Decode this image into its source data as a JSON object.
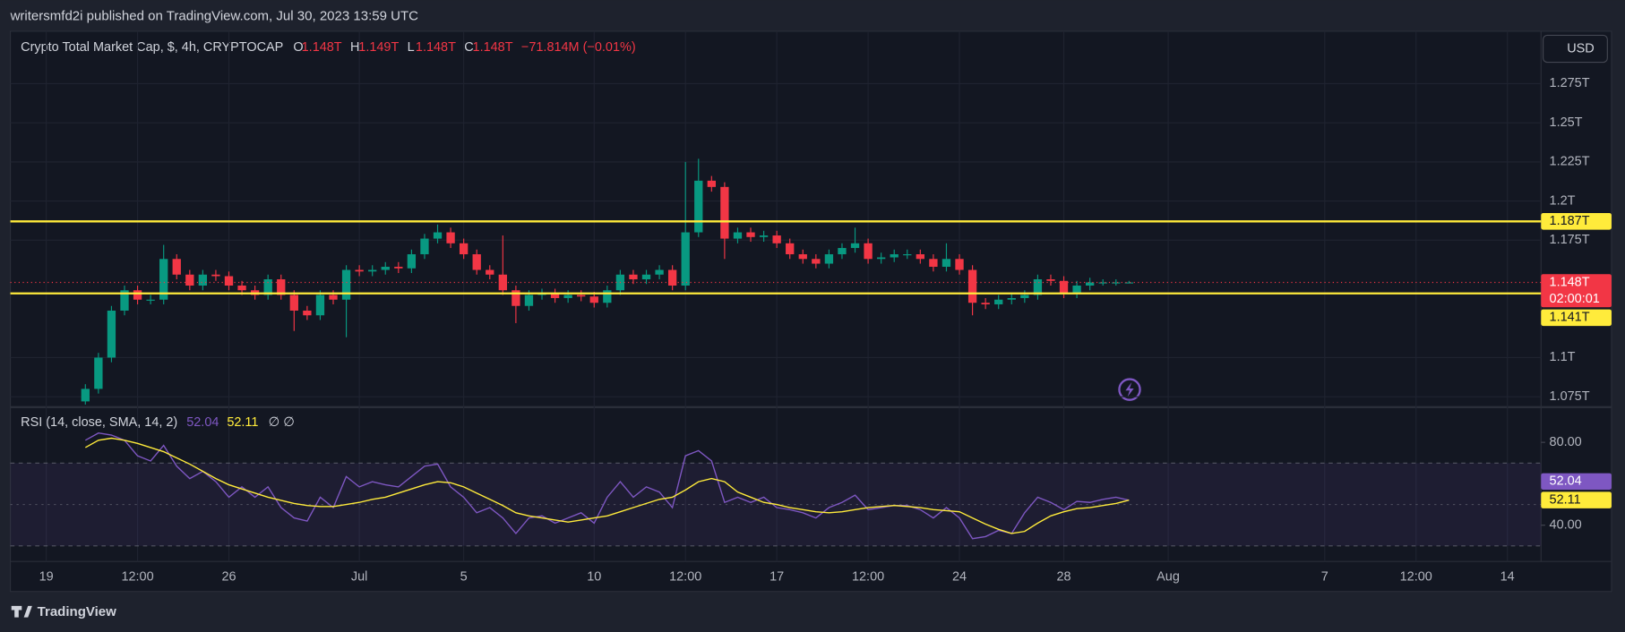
{
  "publish_note": "writersmfd2i published on TradingView.com, Jul 30, 2023 13:59 UTC",
  "brand": "TradingView",
  "currency_button": "USD",
  "chart_data": [
    {
      "type": "candlestick",
      "title": "Crypto Total Market Cap, $, 4h, CRYPTOCAP",
      "legend_values": [
        {
          "key": "O",
          "value": 1.148,
          "label": "1.148T"
        },
        {
          "key": "H",
          "value": 1.149,
          "label": "1.149T"
        },
        {
          "key": "L",
          "value": 1.148,
          "label": "1.148T"
        },
        {
          "key": "C",
          "value": 1.148,
          "label": "1.148T"
        }
      ],
      "change": {
        "value": -7.1814e-05,
        "label": "−71.814M (−0.01%)"
      },
      "up_color": "#089981",
      "down_color": "#f23645",
      "xlim": [
        "2023-06-17T15:00",
        "2023-08-15T07:00"
      ],
      "ylim": [
        1.069,
        1.3085
      ],
      "yticks": [
        {
          "value": 1.075,
          "label": "1.075T"
        },
        {
          "value": 1.1,
          "label": "1.1T"
        },
        {
          "value": 1.175,
          "label": "1.175T"
        },
        {
          "value": 1.2,
          "label": "1.2T"
        },
        {
          "value": 1.225,
          "label": "1.225T"
        },
        {
          "value": 1.25,
          "label": "1.25T"
        },
        {
          "value": 1.275,
          "label": "1.275T"
        }
      ],
      "grid": true,
      "hlines": [
        {
          "value": 1.187,
          "label": "1.187T",
          "color": "#ffeb3b"
        },
        {
          "value": 1.141,
          "label": "1.141T",
          "color": "#ffeb3b"
        }
      ],
      "last": {
        "value": 1.148,
        "label": "1.148T",
        "countdown": "02:00:01",
        "color": "#f23645"
      },
      "x": [
        "2023-06-20T12:00",
        "2023-06-21T00:00",
        "2023-06-21T12:00",
        "2023-06-22T00:00",
        "2023-06-22T12:00",
        "2023-06-23T00:00",
        "2023-06-23T12:00",
        "2023-06-24T00:00",
        "2023-06-24T12:00",
        "2023-06-25T00:00",
        "2023-06-25T12:00",
        "2023-06-26T00:00",
        "2023-06-26T12:00",
        "2023-06-27T00:00",
        "2023-06-27T12:00",
        "2023-06-28T00:00",
        "2023-06-28T12:00",
        "2023-06-29T00:00",
        "2023-06-29T12:00",
        "2023-06-30T00:00",
        "2023-06-30T12:00",
        "2023-07-01T00:00",
        "2023-07-01T12:00",
        "2023-07-02T00:00",
        "2023-07-02T12:00",
        "2023-07-03T00:00",
        "2023-07-03T12:00",
        "2023-07-04T00:00",
        "2023-07-04T12:00",
        "2023-07-05T00:00",
        "2023-07-05T12:00",
        "2023-07-06T00:00",
        "2023-07-06T12:00",
        "2023-07-07T00:00",
        "2023-07-07T12:00",
        "2023-07-08T00:00",
        "2023-07-08T12:00",
        "2023-07-09T00:00",
        "2023-07-09T12:00",
        "2023-07-10T00:00",
        "2023-07-10T12:00",
        "2023-07-11T00:00",
        "2023-07-11T12:00",
        "2023-07-12T00:00",
        "2023-07-12T12:00",
        "2023-07-13T00:00",
        "2023-07-13T12:00",
        "2023-07-14T00:00",
        "2023-07-14T12:00",
        "2023-07-15T00:00",
        "2023-07-15T12:00",
        "2023-07-16T00:00",
        "2023-07-16T12:00",
        "2023-07-17T00:00",
        "2023-07-17T12:00",
        "2023-07-18T00:00",
        "2023-07-18T12:00",
        "2023-07-19T00:00",
        "2023-07-19T12:00",
        "2023-07-20T00:00",
        "2023-07-20T12:00",
        "2023-07-21T00:00",
        "2023-07-21T12:00",
        "2023-07-22T00:00",
        "2023-07-22T12:00",
        "2023-07-23T00:00",
        "2023-07-23T12:00",
        "2023-07-24T00:00",
        "2023-07-24T12:00",
        "2023-07-25T00:00",
        "2023-07-25T12:00",
        "2023-07-26T00:00",
        "2023-07-26T12:00",
        "2023-07-27T00:00",
        "2023-07-27T12:00",
        "2023-07-28T00:00",
        "2023-07-28T12:00",
        "2023-07-29T00:00",
        "2023-07-29T12:00",
        "2023-07-30T00:00",
        "2023-07-30T12:00"
      ],
      "open": [
        1.072,
        1.08,
        1.1,
        1.13,
        1.143,
        1.137,
        1.137,
        1.163,
        1.153,
        1.146,
        1.153,
        1.152,
        1.146,
        1.143,
        1.14,
        1.15,
        1.14,
        1.13,
        1.127,
        1.14,
        1.137,
        1.156,
        1.155,
        1.156,
        1.158,
        1.157,
        1.166,
        1.176,
        1.18,
        1.173,
        1.166,
        1.156,
        1.153,
        1.143,
        1.133,
        1.14,
        1.141,
        1.138,
        1.14,
        1.139,
        1.135,
        1.143,
        1.153,
        1.15,
        1.153,
        1.156,
        1.146,
        1.18,
        1.213,
        1.209,
        1.176,
        1.18,
        1.177,
        1.178,
        1.173,
        1.166,
        1.163,
        1.16,
        1.166,
        1.17,
        1.173,
        1.163,
        1.164,
        1.166,
        1.166,
        1.163,
        1.158,
        1.163,
        1.156,
        1.135,
        1.134,
        1.137,
        1.138,
        1.14,
        1.15,
        1.149,
        1.141,
        1.146,
        1.148,
        1.148,
        1.148
      ],
      "high": [
        1.083,
        1.103,
        1.133,
        1.146,
        1.146,
        1.14,
        1.172,
        1.166,
        1.156,
        1.156,
        1.156,
        1.155,
        1.149,
        1.146,
        1.153,
        1.153,
        1.143,
        1.133,
        1.143,
        1.143,
        1.159,
        1.159,
        1.159,
        1.161,
        1.161,
        1.169,
        1.179,
        1.185,
        1.183,
        1.176,
        1.169,
        1.159,
        1.178,
        1.146,
        1.143,
        1.144,
        1.144,
        1.143,
        1.143,
        1.142,
        1.146,
        1.156,
        1.156,
        1.156,
        1.159,
        1.159,
        1.225,
        1.227,
        1.216,
        1.212,
        1.183,
        1.183,
        1.181,
        1.181,
        1.176,
        1.169,
        1.166,
        1.169,
        1.173,
        1.183,
        1.176,
        1.167,
        1.169,
        1.169,
        1.169,
        1.166,
        1.173,
        1.166,
        1.159,
        1.138,
        1.14,
        1.141,
        1.143,
        1.153,
        1.153,
        1.152,
        1.149,
        1.151,
        1.15,
        1.15,
        1.149
      ],
      "low": [
        1.07,
        1.077,
        1.097,
        1.127,
        1.134,
        1.134,
        1.134,
        1.15,
        1.143,
        1.143,
        1.149,
        1.143,
        1.14,
        1.137,
        1.137,
        1.137,
        1.117,
        1.124,
        1.124,
        1.134,
        1.113,
        1.152,
        1.152,
        1.153,
        1.154,
        1.154,
        1.163,
        1.173,
        1.17,
        1.163,
        1.153,
        1.15,
        1.14,
        1.122,
        1.13,
        1.137,
        1.135,
        1.135,
        1.136,
        1.132,
        1.132,
        1.14,
        1.147,
        1.147,
        1.15,
        1.143,
        1.143,
        1.177,
        1.206,
        1.163,
        1.173,
        1.174,
        1.174,
        1.17,
        1.163,
        1.16,
        1.157,
        1.157,
        1.163,
        1.167,
        1.16,
        1.16,
        1.161,
        1.163,
        1.16,
        1.155,
        1.155,
        1.153,
        1.127,
        1.131,
        1.131,
        1.134,
        1.135,
        1.137,
        1.146,
        1.138,
        1.138,
        1.143,
        1.146,
        1.146,
        1.148
      ],
      "close": [
        1.08,
        1.1,
        1.13,
        1.143,
        1.137,
        1.137,
        1.163,
        1.153,
        1.146,
        1.153,
        1.152,
        1.146,
        1.143,
        1.14,
        1.15,
        1.14,
        1.13,
        1.127,
        1.14,
        1.137,
        1.156,
        1.155,
        1.156,
        1.158,
        1.157,
        1.166,
        1.176,
        1.18,
        1.173,
        1.166,
        1.156,
        1.153,
        1.143,
        1.133,
        1.14,
        1.141,
        1.138,
        1.14,
        1.139,
        1.135,
        1.143,
        1.153,
        1.15,
        1.153,
        1.156,
        1.146,
        1.18,
        1.213,
        1.209,
        1.176,
        1.18,
        1.177,
        1.178,
        1.173,
        1.166,
        1.163,
        1.16,
        1.166,
        1.17,
        1.173,
        1.163,
        1.164,
        1.166,
        1.166,
        1.163,
        1.158,
        1.163,
        1.156,
        1.135,
        1.134,
        1.137,
        1.138,
        1.14,
        1.15,
        1.149,
        1.141,
        1.146,
        1.148,
        1.148,
        1.148,
        1.148
      ]
    },
    {
      "type": "line",
      "title": "RSI (14, close, SMA, 14, 2)",
      "extra_legend": "∅  ∅",
      "xlim": [
        "2023-06-17T15:00",
        "2023-08-15T07:00"
      ],
      "xticks": [
        {
          "value": "2023-06-19T00:00",
          "label": "19"
        },
        {
          "value": "2023-06-22T12:00",
          "label": "12:00"
        },
        {
          "value": "2023-06-26T00:00",
          "label": "26"
        },
        {
          "value": "2023-07-01T00:00",
          "label": "Jul"
        },
        {
          "value": "2023-07-05T00:00",
          "label": "5"
        },
        {
          "value": "2023-07-10T00:00",
          "label": "10"
        },
        {
          "value": "2023-07-13T12:00",
          "label": "12:00"
        },
        {
          "value": "2023-07-17T00:00",
          "label": "17"
        },
        {
          "value": "2023-07-20T12:00",
          "label": "12:00"
        },
        {
          "value": "2023-07-24T00:00",
          "label": "24"
        },
        {
          "value": "2023-07-28T00:00",
          "label": "28"
        },
        {
          "value": "2023-08-01T00:00",
          "label": "Aug"
        },
        {
          "value": "2023-08-07T00:00",
          "label": "7"
        },
        {
          "value": "2023-08-10T12:00",
          "label": "12:00"
        },
        {
          "value": "2023-08-14T00:00",
          "label": "14"
        }
      ],
      "ylim": [
        23.5,
        96
      ],
      "yticks": [
        {
          "value": 80,
          "label": "80.00"
        },
        {
          "value": 40,
          "label": "40.00"
        }
      ],
      "band": [
        30,
        70
      ],
      "midline": 50,
      "band_color": "#7e57c2",
      "x": [
        "2023-06-20T12:00",
        "2023-06-21T00:00",
        "2023-06-21T12:00",
        "2023-06-22T00:00",
        "2023-06-22T12:00",
        "2023-06-23T00:00",
        "2023-06-23T12:00",
        "2023-06-24T00:00",
        "2023-06-24T12:00",
        "2023-06-25T00:00",
        "2023-06-25T12:00",
        "2023-06-26T00:00",
        "2023-06-26T12:00",
        "2023-06-27T00:00",
        "2023-06-27T12:00",
        "2023-06-28T00:00",
        "2023-06-28T12:00",
        "2023-06-29T00:00",
        "2023-06-29T12:00",
        "2023-06-30T00:00",
        "2023-06-30T12:00",
        "2023-07-01T00:00",
        "2023-07-01T12:00",
        "2023-07-02T00:00",
        "2023-07-02T12:00",
        "2023-07-03T00:00",
        "2023-07-03T12:00",
        "2023-07-04T00:00",
        "2023-07-04T12:00",
        "2023-07-05T00:00",
        "2023-07-05T12:00",
        "2023-07-06T00:00",
        "2023-07-06T12:00",
        "2023-07-07T00:00",
        "2023-07-07T12:00",
        "2023-07-08T00:00",
        "2023-07-08T12:00",
        "2023-07-09T00:00",
        "2023-07-09T12:00",
        "2023-07-10T00:00",
        "2023-07-10T12:00",
        "2023-07-11T00:00",
        "2023-07-11T12:00",
        "2023-07-12T00:00",
        "2023-07-12T12:00",
        "2023-07-13T00:00",
        "2023-07-13T12:00",
        "2023-07-14T00:00",
        "2023-07-14T12:00",
        "2023-07-15T00:00",
        "2023-07-15T12:00",
        "2023-07-16T00:00",
        "2023-07-16T12:00",
        "2023-07-17T00:00",
        "2023-07-17T12:00",
        "2023-07-18T00:00",
        "2023-07-18T12:00",
        "2023-07-19T00:00",
        "2023-07-19T12:00",
        "2023-07-20T00:00",
        "2023-07-20T12:00",
        "2023-07-21T00:00",
        "2023-07-21T12:00",
        "2023-07-22T00:00",
        "2023-07-22T12:00",
        "2023-07-23T00:00",
        "2023-07-23T12:00",
        "2023-07-24T00:00",
        "2023-07-24T12:00",
        "2023-07-25T00:00",
        "2023-07-25T12:00",
        "2023-07-26T00:00",
        "2023-07-26T12:00",
        "2023-07-27T00:00",
        "2023-07-27T12:00",
        "2023-07-28T00:00",
        "2023-07-28T12:00",
        "2023-07-29T00:00",
        "2023-07-29T12:00",
        "2023-07-30T00:00",
        "2023-07-30T12:00"
      ],
      "series": [
        {
          "color": "#7e57c2",
          "label_text_color": "#ffffff",
          "values": [
            81,
            84.5,
            83.5,
            81,
            73.5,
            71,
            78.5,
            68.5,
            62.5,
            66,
            61,
            53.5,
            58.5,
            53.5,
            58.5,
            48.5,
            43.5,
            42,
            53.5,
            48.5,
            63.5,
            58.5,
            61,
            59.5,
            58.5,
            63.5,
            68.5,
            69.5,
            58.5,
            53.5,
            46,
            48.5,
            43.5,
            36,
            43.5,
            44.5,
            41,
            43.5,
            46,
            41,
            53.5,
            61,
            53.5,
            58.5,
            56,
            48.5,
            73.5,
            76,
            71,
            51,
            53.5,
            51,
            53.5,
            48.5,
            47.5,
            46,
            43.5,
            48.5,
            51,
            54.5,
            47.5,
            48.5,
            49.5,
            49.5,
            47.5,
            43.5,
            48.5,
            43.5,
            33.5,
            34.5,
            37.5,
            36,
            46,
            53.5,
            51,
            47.5,
            51.5,
            51,
            52.5,
            53.5,
            52.04
          ]
        },
        {
          "color": "#ffeb3b",
          "label_text_color": "#131722",
          "values": [
            77.5,
            81,
            82,
            81,
            79.5,
            77.5,
            75.5,
            72.5,
            69.5,
            66,
            62.5,
            59.5,
            57.5,
            55.5,
            53.5,
            52,
            50.5,
            49.5,
            49,
            49,
            50,
            51,
            52.5,
            53.5,
            55.5,
            57.5,
            59.5,
            61,
            60.5,
            58.5,
            55.5,
            52.5,
            49.5,
            46,
            44.5,
            43.5,
            42.5,
            41.5,
            42.5,
            43.5,
            44.5,
            46.5,
            48.5,
            50.5,
            52.5,
            53.5,
            57,
            61,
            62.5,
            61,
            56,
            53.5,
            51,
            50,
            48.5,
            47.5,
            46.5,
            46,
            46.5,
            47.5,
            48.5,
            49,
            49.5,
            49,
            48.5,
            47.5,
            47,
            46.5,
            43.5,
            40.5,
            38,
            36,
            37,
            41,
            44.5,
            46.5,
            48,
            48.5,
            49.5,
            50.5,
            52.11
          ]
        }
      ]
    }
  ]
}
